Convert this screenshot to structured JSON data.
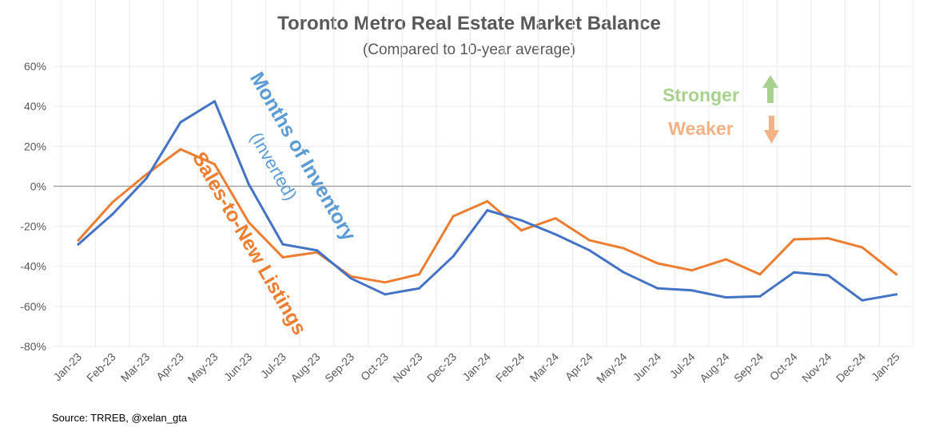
{
  "chart_data": {
    "type": "line",
    "title": "Toronto Metro Real Estate Market Balance",
    "subtitle": "(Compared to 10-year average)",
    "source": "Source: TRREB, @xelan_gta",
    "categories": [
      "Jan-23",
      "Feb-23",
      "Mar-23",
      "Apr-23",
      "May-23",
      "Jun-23",
      "Jul-23",
      "Aug-23",
      "Sep-23",
      "Oct-23",
      "Nov-23",
      "Dec-23",
      "Jan-24",
      "Feb-24",
      "Mar-24",
      "Apr-24",
      "May-24",
      "Jun-24",
      "Jul-24",
      "Aug-24",
      "Sep-24",
      "Oct-24",
      "Nov-24",
      "Dec-24",
      "Jan-25"
    ],
    "ylim": [
      -80,
      60
    ],
    "yticks": [
      60,
      40,
      20,
      0,
      -20,
      -40,
      -60,
      -80
    ],
    "y_format": "percent",
    "grid": true,
    "series": [
      {
        "name": "Months of Inventory",
        "name_sub": "(Inverted)",
        "color": "#4472C4",
        "label_color": "#5B9BD5",
        "values": [
          -29,
          -14,
          4,
          32,
          42.5,
          1,
          -29,
          -32,
          -46,
          -54,
          -51,
          -35,
          -12,
          -17,
          -24,
          -32,
          -43,
          -51,
          -52,
          -55.5,
          -55,
          -43,
          -44.5,
          -57,
          -54
        ]
      },
      {
        "name": "Sales-to-New Listings",
        "color": "#ED7D31",
        "label_color": "#ED7D31",
        "values": [
          -27,
          -8,
          6,
          18.5,
          11,
          -18,
          -35.5,
          -33,
          -45,
          -48,
          -44,
          -15,
          -7.5,
          -22,
          -16,
          -27,
          -31,
          -38.5,
          -42,
          -36.5,
          -44,
          -26.5,
          -26,
          -30.5,
          -44
        ]
      }
    ],
    "legend": {
      "stronger": {
        "label": "Stronger",
        "color": "#A9D18E",
        "icon": "up-arrow-icon"
      },
      "weaker": {
        "label": "Weaker",
        "color": "#F4B183",
        "icon": "down-arrow-icon"
      }
    }
  }
}
